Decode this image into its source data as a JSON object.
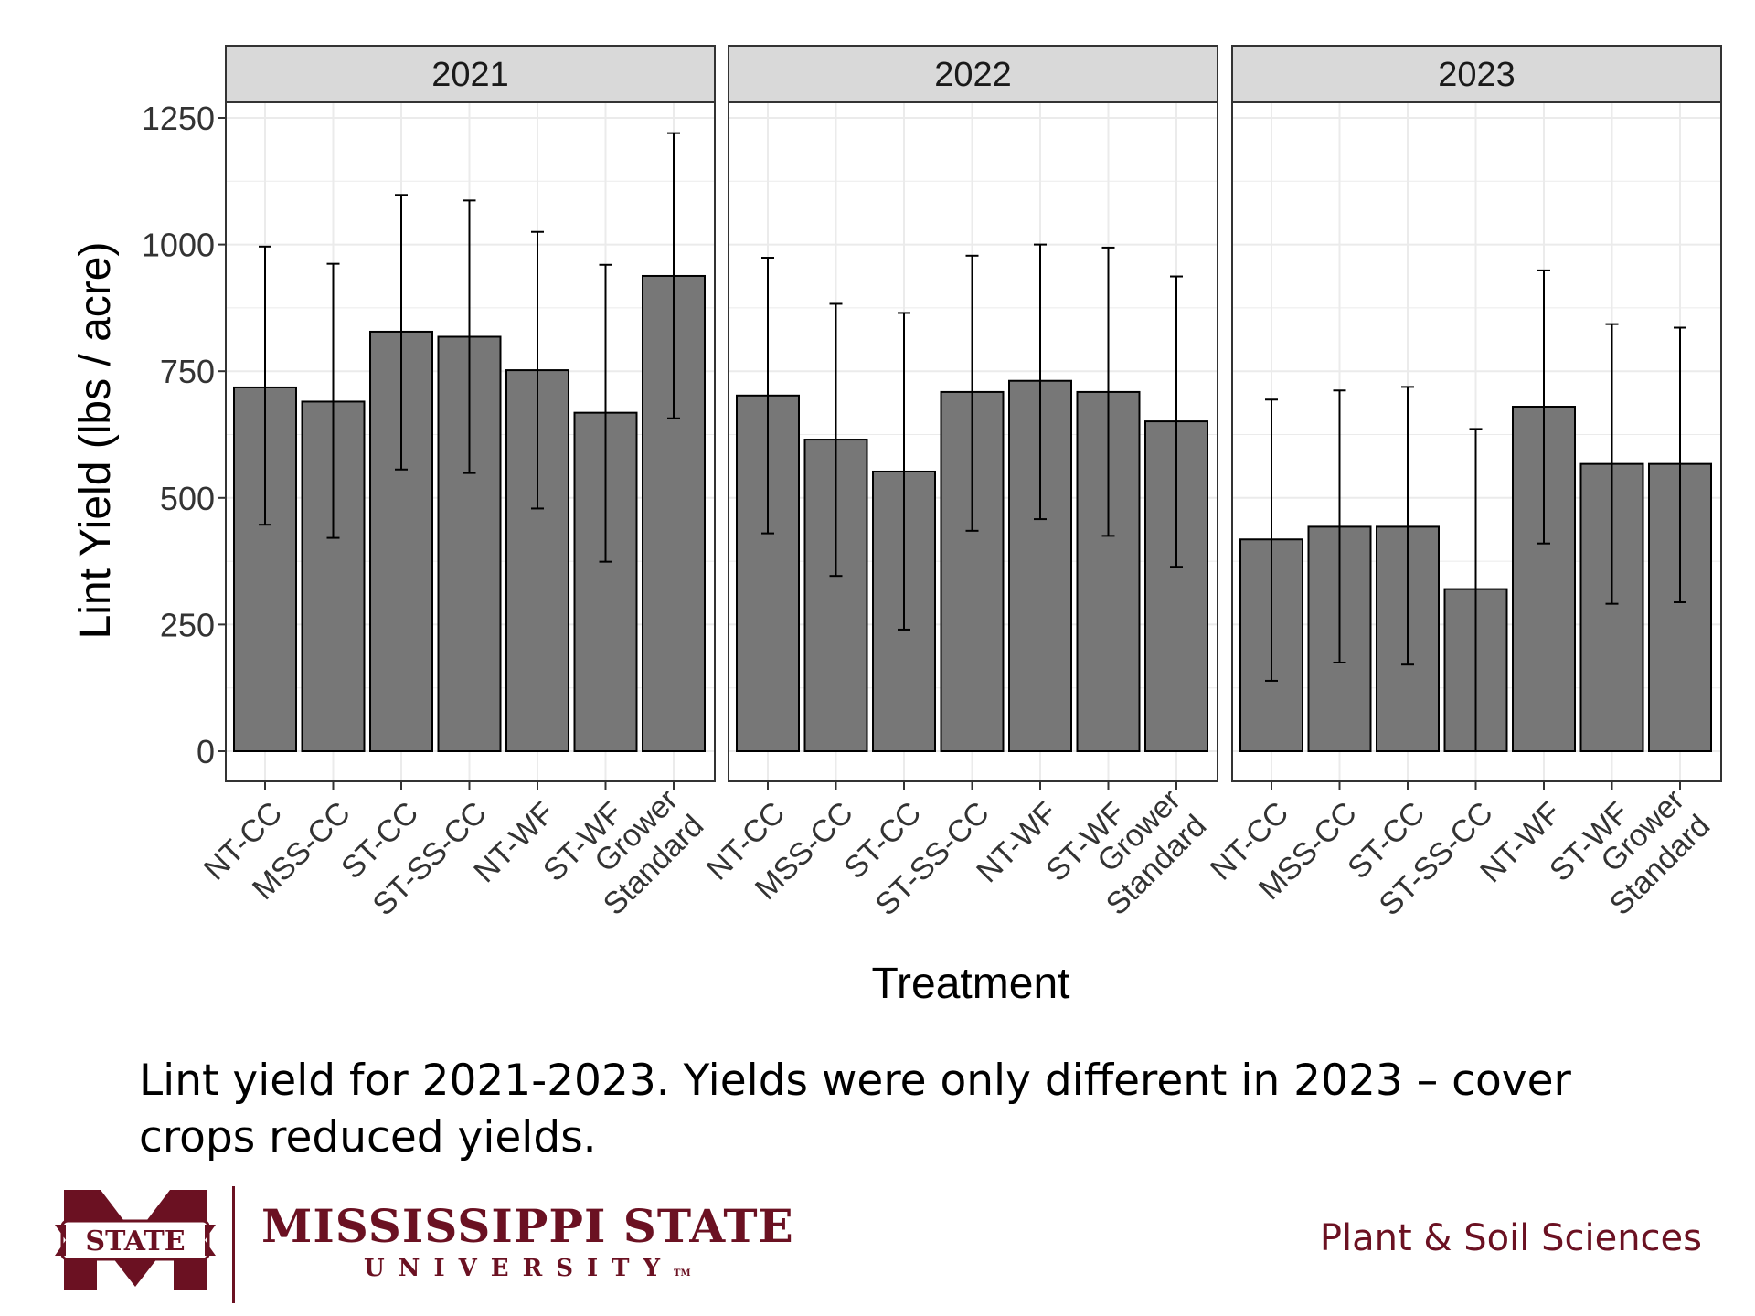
{
  "chart_data": {
    "type": "bar",
    "ylabel": "Lint Yield (lbs / acre)",
    "xlabel": "Treatment",
    "ylim": [
      0,
      1280
    ],
    "yticks": [
      0,
      250,
      500,
      750,
      1000,
      1250
    ],
    "grid": true,
    "error_bars": true,
    "categories": [
      "NT-CC",
      "MSS-CC",
      "ST-CC",
      "ST-SS-CC",
      "NT-WF",
      "ST-WF",
      "Grower Standard"
    ],
    "panels": [
      {
        "title": "2021",
        "values": [
          718,
          690,
          828,
          818,
          752,
          668,
          938
        ],
        "err_low": [
          447,
          421,
          556,
          549,
          479,
          374,
          657
        ],
        "err_high": [
          996,
          962,
          1098,
          1087,
          1025,
          960,
          1220
        ]
      },
      {
        "title": "2022",
        "values": [
          702,
          615,
          552,
          709,
          731,
          709,
          651
        ],
        "err_low": [
          430,
          346,
          240,
          435,
          458,
          425,
          364
        ],
        "err_high": [
          974,
          883,
          865,
          978,
          1000,
          994,
          937
        ]
      },
      {
        "title": "2023",
        "values": [
          418,
          443,
          443,
          320,
          680,
          567,
          567
        ],
        "err_low": [
          139,
          175,
          171,
          0,
          410,
          291,
          294
        ],
        "err_high": [
          694,
          712,
          719,
          636,
          949,
          843,
          836
        ]
      }
    ],
    "colors": {
      "bar_fill": "#777777",
      "bar_stroke": "#000000",
      "strip_fill": "#d9d9d9",
      "grid": "#ebebeb"
    }
  },
  "caption": "Lint yield for 2021-2023. Yields were only different in 2023 – cover crops reduced yields.",
  "footer": {
    "logo_badge": "STATE",
    "university_name": "MISSISSIPPI STATE",
    "university_sub": "UNIVERSITY",
    "trademark": "TM",
    "department": "Plant & Soil Sciences"
  }
}
